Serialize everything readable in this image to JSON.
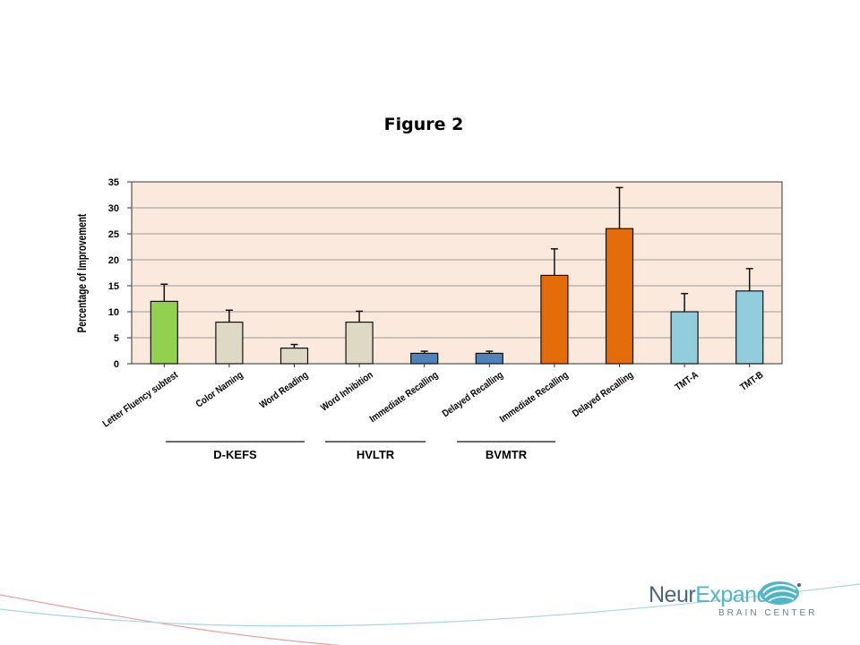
{
  "slide": {
    "title": "Figure 2"
  },
  "chart_data": {
    "type": "bar",
    "title": "",
    "xlabel": "",
    "ylabel": "Percentage of Improvement",
    "ylim": [
      0,
      35
    ],
    "yticks": [
      0,
      5,
      10,
      15,
      20,
      25,
      30,
      35
    ],
    "grid": true,
    "categories": [
      "Letter Fluency subtest",
      "Color Naming",
      "Word Reading",
      "Word Inhibition",
      "Immediate Recalling",
      "Delayed Recalling",
      "Immediate Recalling",
      "Delayed Recalling",
      "TMT-A",
      "TMT-B"
    ],
    "values": [
      12,
      8,
      3,
      8,
      2,
      2,
      17,
      26,
      10,
      14
    ],
    "error_upper": [
      15.3,
      10.3,
      3.7,
      10.1,
      2.4,
      2.4,
      22.1,
      33.9,
      13.5,
      18.3
    ],
    "bar_colors": [
      "#92d050",
      "#ddd9c4",
      "#ddd9c4",
      "#ddd9c4",
      "#4f81bd",
      "#4f81bd",
      "#e46c0a",
      "#e46c0a",
      "#92cddc",
      "#92cddc"
    ],
    "groups": [
      {
        "label": "D-KEFS",
        "categories": [
          "Color Naming",
          "Word Reading",
          "Word Inhibition"
        ]
      },
      {
        "label": "HVLTR",
        "categories": [
          "Immediate Recalling",
          "Delayed Recalling"
        ]
      },
      {
        "label": "BVMTR",
        "categories": [
          "Immediate Recalling",
          "Delayed Recalling"
        ]
      }
    ],
    "plot_background": "#fce9dd"
  },
  "logo": {
    "name_part1": "Neur",
    "name_part2": "Expand",
    "tagline": "BRAIN CENTER",
    "colors": {
      "dark": "#4d6675",
      "teal": "#4fb6c9"
    }
  }
}
